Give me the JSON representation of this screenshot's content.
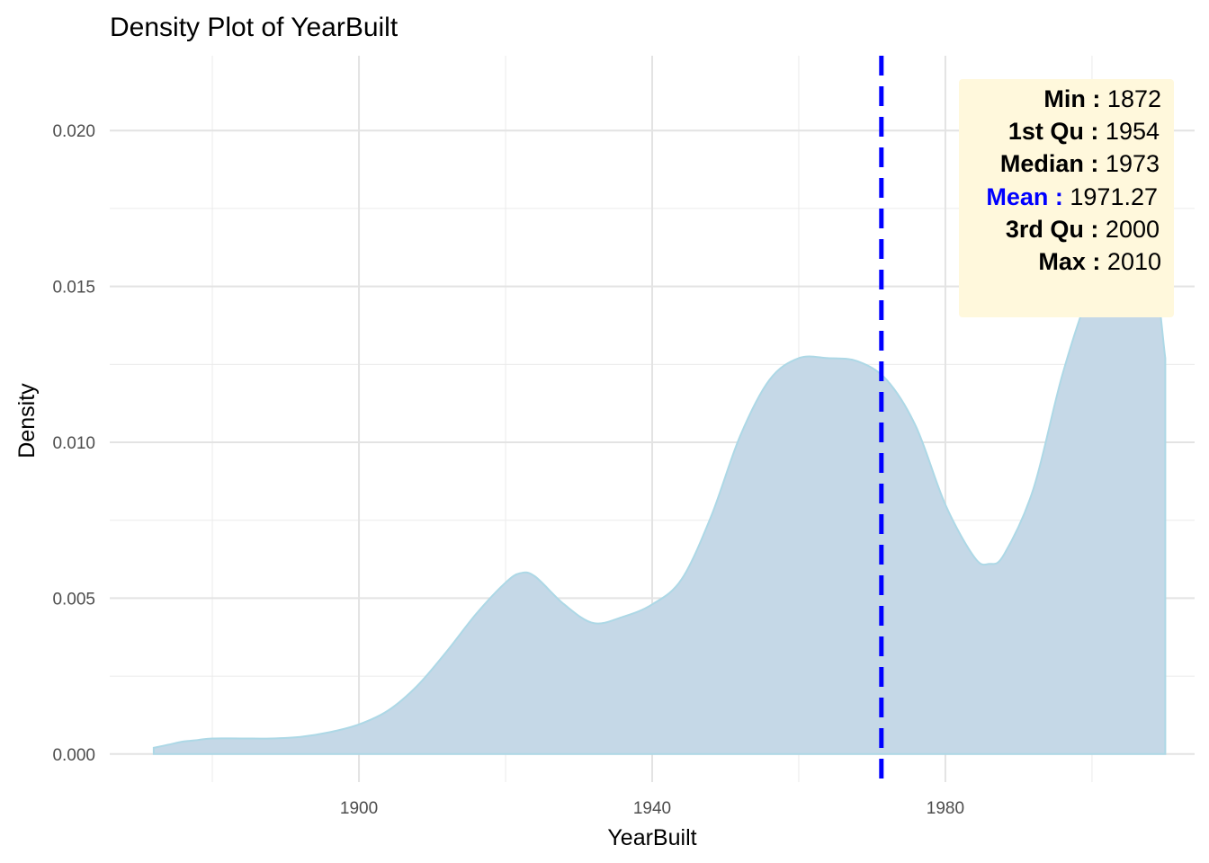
{
  "chart_data": {
    "type": "area",
    "title": "Density Plot of YearBuilt",
    "xlabel": "YearBuilt",
    "ylabel": "Density",
    "xlim": [
      1866,
      2014
    ],
    "ylim": [
      -0.0009,
      0.0224
    ],
    "x_ticks": [
      1900,
      1940,
      1980
    ],
    "x_tick_labels": [
      "1900",
      "1940",
      "1980"
    ],
    "y_ticks": [
      0.0,
      0.005,
      0.01,
      0.015,
      0.02
    ],
    "y_tick_labels": [
      "0.000",
      "0.005",
      "0.010",
      "0.015",
      "0.020"
    ],
    "grid": true,
    "fill_color": "#c5d8e7",
    "line_color": "#add8e6",
    "mean_line": {
      "x": 1971.27,
      "color": "#0000ff",
      "style": "dashed"
    },
    "x": [
      1872,
      1874,
      1876,
      1878,
      1880,
      1884,
      1888,
      1892,
      1896,
      1900,
      1904,
      1908,
      1912,
      1916,
      1920,
      1922,
      1924,
      1928,
      1932,
      1936,
      1940,
      1944,
      1948,
      1952,
      1956,
      1960,
      1964,
      1968,
      1972,
      1976,
      1980,
      1984,
      1986,
      1988,
      1992,
      1996,
      2000,
      2004,
      2008,
      2010
    ],
    "y": [
      0.0002,
      0.0003,
      0.0004,
      0.00045,
      0.0005,
      0.0005,
      0.0005,
      0.00055,
      0.0007,
      0.00095,
      0.0014,
      0.0022,
      0.0033,
      0.0045,
      0.0055,
      0.0058,
      0.0057,
      0.0048,
      0.0042,
      0.0044,
      0.0048,
      0.0056,
      0.0076,
      0.0102,
      0.012,
      0.0127,
      0.0127,
      0.0126,
      0.012,
      0.0105,
      0.008,
      0.0063,
      0.0061,
      0.0064,
      0.0085,
      0.0122,
      0.015,
      0.0165,
      0.016,
      0.0127
    ]
  },
  "stats": [
    {
      "key": "Min",
      "sep": ":",
      "value": "1872",
      "color": "#000000"
    },
    {
      "key": "1st Qu",
      "sep": ":",
      "value": "1954",
      "color": "#000000"
    },
    {
      "key": "Median",
      "sep": ":",
      "value": "1973",
      "color": "#000000"
    },
    {
      "key": "Mean",
      "sep": ":",
      "value": "1971.27",
      "color": "#0000ff"
    },
    {
      "key": "3rd Qu",
      "sep": ":",
      "value": "2000",
      "color": "#000000"
    },
    {
      "key": "Max",
      "sep": ":",
      "value": "2010",
      "color": "#000000"
    }
  ]
}
